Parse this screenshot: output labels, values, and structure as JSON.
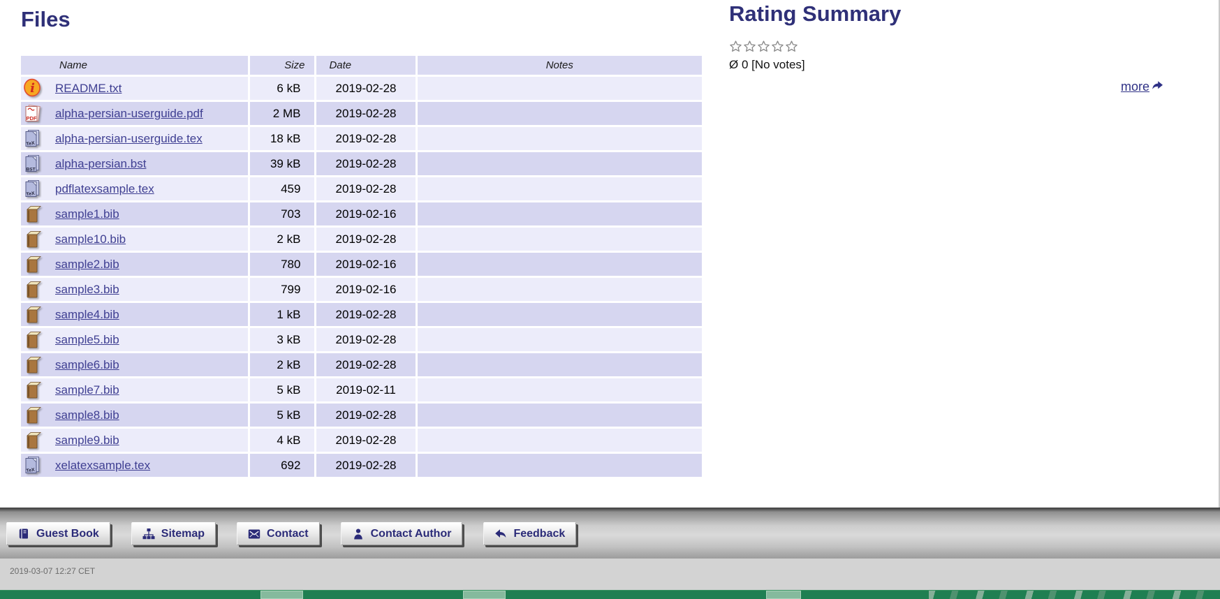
{
  "files_section": {
    "heading": "Files"
  },
  "files_table": {
    "columns": [
      "Name",
      "Size",
      "Date",
      "Notes"
    ],
    "rows": [
      {
        "icon": "readme-icon",
        "name": "README.txt",
        "size": "6 kB",
        "date": "2019-02-28",
        "notes": ""
      },
      {
        "icon": "pdf-icon",
        "name": "alpha-persian-userguide.pdf",
        "size": "2 MB",
        "date": "2019-02-28",
        "notes": ""
      },
      {
        "icon": "tex-icon",
        "name": "alpha-persian-userguide.tex",
        "size": "18 kB",
        "date": "2019-02-28",
        "notes": ""
      },
      {
        "icon": "bst-icon",
        "name": "alpha-persian.bst",
        "size": "39 kB",
        "date": "2019-02-28",
        "notes": ""
      },
      {
        "icon": "tex-icon",
        "name": "pdflatexsample.tex",
        "size": "459",
        "date": "2019-02-28",
        "notes": ""
      },
      {
        "icon": "bib-icon",
        "name": "sample1.bib",
        "size": "703",
        "date": "2019-02-16",
        "notes": ""
      },
      {
        "icon": "bib-icon",
        "name": "sample10.bib",
        "size": "2 kB",
        "date": "2019-02-28",
        "notes": ""
      },
      {
        "icon": "bib-icon",
        "name": "sample2.bib",
        "size": "780",
        "date": "2019-02-16",
        "notes": ""
      },
      {
        "icon": "bib-icon",
        "name": "sample3.bib",
        "size": "799",
        "date": "2019-02-16",
        "notes": ""
      },
      {
        "icon": "bib-icon",
        "name": "sample4.bib",
        "size": "1 kB",
        "date": "2019-02-28",
        "notes": ""
      },
      {
        "icon": "bib-icon",
        "name": "sample5.bib",
        "size": "3 kB",
        "date": "2019-02-28",
        "notes": ""
      },
      {
        "icon": "bib-icon",
        "name": "sample6.bib",
        "size": "2 kB",
        "date": "2019-02-28",
        "notes": ""
      },
      {
        "icon": "bib-icon",
        "name": "sample7.bib",
        "size": "5 kB",
        "date": "2019-02-11",
        "notes": ""
      },
      {
        "icon": "bib-icon",
        "name": "sample8.bib",
        "size": "5 kB",
        "date": "2019-02-28",
        "notes": ""
      },
      {
        "icon": "bib-icon",
        "name": "sample9.bib",
        "size": "4 kB",
        "date": "2019-02-28",
        "notes": ""
      },
      {
        "icon": "tex-icon",
        "name": "xelatexsample.tex",
        "size": "692",
        "date": "2019-02-28",
        "notes": ""
      }
    ]
  },
  "rating_section": {
    "heading": "Rating Summary",
    "stars_total": 5,
    "stars_filled": 0,
    "average_text": "Ø 0 [No votes]",
    "more_label": "more"
  },
  "toolbar": {
    "buttons": [
      {
        "icon": "guest-book-icon",
        "label": "Guest Book"
      },
      {
        "icon": "sitemap-icon",
        "label": "Sitemap"
      },
      {
        "icon": "contact-icon",
        "label": "Contact"
      },
      {
        "icon": "contact-author-icon",
        "label": "Contact Author"
      },
      {
        "icon": "feedback-icon",
        "label": "Feedback"
      }
    ]
  },
  "footer": {
    "timestamp": "2019-03-07 12:27 CET"
  },
  "colors": {
    "heading": "#2f3078",
    "link": "#3f3f92",
    "table_header_bg": "#dadaf2",
    "row_light": "#ececfa",
    "row_dark": "#d6d6f0",
    "button_text": "#2b2b78",
    "green_bar": "#1f7f52",
    "footer_bg": "#d3d3d3"
  }
}
